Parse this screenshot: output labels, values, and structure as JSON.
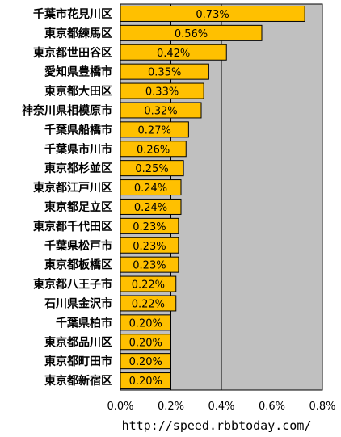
{
  "chart_data": {
    "type": "bar",
    "orientation": "horizontal",
    "categories": [
      "千葉市花見川区",
      "東京都練馬区",
      "東京都世田谷区",
      "愛知県豊橋市",
      "東京都大田区",
      "神奈川県相模原市",
      "千葉県船橋市",
      "千葉県市川市",
      "東京都杉並区",
      "東京都江戸川区",
      "東京都足立区",
      "東京都千代田区",
      "千葉県松戸市",
      "東京都板橋区",
      "東京都八王子市",
      "石川県金沢市",
      "千葉県柏市",
      "東京都品川区",
      "東京都町田市",
      "東京都新宿区"
    ],
    "values": [
      0.73,
      0.56,
      0.42,
      0.35,
      0.33,
      0.32,
      0.27,
      0.26,
      0.25,
      0.24,
      0.24,
      0.23,
      0.23,
      0.23,
      0.22,
      0.22,
      0.2,
      0.2,
      0.2,
      0.2
    ],
    "value_labels": [
      "0.73%",
      "0.56%",
      "0.42%",
      "0.35%",
      "0.33%",
      "0.32%",
      "0.27%",
      "0.26%",
      "0.25%",
      "0.24%",
      "0.24%",
      "0.23%",
      "0.23%",
      "0.23%",
      "0.22%",
      "0.22%",
      "0.20%",
      "0.20%",
      "0.20%",
      "0.20%"
    ],
    "xlim": [
      0,
      0.8
    ],
    "x_ticks": [
      0,
      0.2,
      0.4,
      0.6,
      0.8
    ],
    "x_tick_labels": [
      "0.0%",
      "0.2%",
      "0.4%",
      "0.6%",
      "0.8%"
    ],
    "grid": "vertical",
    "title": "",
    "xlabel": "",
    "ylabel": ""
  },
  "colors": {
    "bar": "#FFC000",
    "bar_border": "#000000",
    "plot_background": "#C0C0C0",
    "gridline": "#000000"
  },
  "footer": {
    "source_url": "http://speed.rbbtoday.com/"
  }
}
